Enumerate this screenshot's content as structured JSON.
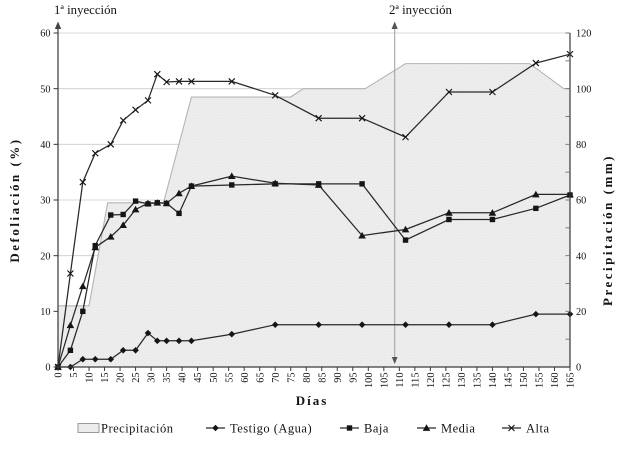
{
  "chart_data": {
    "type": "line",
    "title": "",
    "xlabel": "Días",
    "ylabel_left": "Defoliación (%)",
    "ylabel_right": "Precipitación (mm)",
    "x_range": [
      0,
      165
    ],
    "y_left_range": [
      0,
      60
    ],
    "y_right_range": [
      0,
      120
    ],
    "x_ticks": [
      0,
      5,
      10,
      15,
      20,
      25,
      30,
      35,
      40,
      45,
      50,
      55,
      60,
      65,
      70,
      75,
      80,
      85,
      90,
      95,
      100,
      105,
      110,
      115,
      120,
      125,
      130,
      135,
      140,
      145,
      150,
      155,
      160,
      165
    ],
    "y_ticks_left": [
      0,
      10,
      20,
      30,
      40,
      50,
      60
    ],
    "y_ticks_right": [
      0,
      20,
      40,
      60,
      80,
      100,
      120
    ],
    "grid": "horizontal",
    "legend_position": "bottom",
    "days": [
      0,
      4,
      8,
      12,
      17,
      21,
      25,
      29,
      32,
      35,
      39,
      43,
      56,
      70,
      84,
      98,
      112,
      126,
      140,
      154,
      165
    ],
    "series": [
      {
        "name": "Testigo (Agua)",
        "axis": "left",
        "marker": "diamond",
        "color": "#282828",
        "values": [
          0,
          0,
          1.4,
          1.4,
          1.4,
          3,
          3,
          6.1,
          4.7,
          4.7,
          4.7,
          4.7,
          5.9,
          7.6,
          7.6,
          7.6,
          7.6,
          7.6,
          7.6,
          9.5,
          9.5
        ]
      },
      {
        "name": "Baja",
        "axis": "left",
        "marker": "square",
        "color": "#282828",
        "values": [
          0,
          3,
          10,
          21.8,
          27.3,
          27.4,
          29.8,
          29.3,
          29.5,
          29.4,
          27.6,
          32.5,
          32.7,
          32.9,
          32.9,
          32.9,
          22.8,
          26.5,
          26.5,
          28.5,
          30.9
        ]
      },
      {
        "name": "Media",
        "axis": "left",
        "marker": "triangle",
        "color": "#282828",
        "values": [
          0,
          7.5,
          14.5,
          21.5,
          23.4,
          25.5,
          28.3,
          29.4,
          29.5,
          29.4,
          31.2,
          32.5,
          34.3,
          33,
          32.7,
          23.6,
          24.7,
          27.7,
          27.7,
          31,
          31
        ]
      },
      {
        "name": "Alta",
        "axis": "left",
        "marker": "x",
        "color": "#282828",
        "values": [
          0,
          16.8,
          33.2,
          38.4,
          40,
          44.3,
          46.2,
          47.9,
          52.6,
          51.2,
          51.3,
          51.3,
          51.3,
          48.8,
          44.7,
          44.7,
          41.3,
          49.4,
          49.4,
          54.6,
          56.2
        ]
      }
    ],
    "precipitation_area": {
      "name": "Precipitación",
      "axis": "right",
      "unit": "mm",
      "fill": "#ededed",
      "border": "#b4b4b4",
      "points": [
        [
          0,
          22
        ],
        [
          10,
          22
        ],
        [
          16,
          59
        ],
        [
          34,
          59
        ],
        [
          43,
          97
        ],
        [
          75,
          97
        ],
        [
          79,
          100
        ],
        [
          99,
          100
        ],
        [
          112,
          109
        ],
        [
          152,
          109
        ],
        [
          163,
          100
        ],
        [
          165,
          100
        ]
      ]
    },
    "annotations": [
      {
        "label": "1ª inyección",
        "day": 0,
        "arrow": "up"
      },
      {
        "label": "2ª inyección",
        "day": 108.5,
        "arrow": "up-down"
      }
    ],
    "legend": [
      {
        "label": "Precipitación",
        "swatch": "area"
      },
      {
        "label": "Testigo (Agua)",
        "swatch": "diamond"
      },
      {
        "label": "Baja",
        "swatch": "square"
      },
      {
        "label": "Media",
        "swatch": "triangle"
      },
      {
        "label": "Alta",
        "swatch": "x"
      }
    ],
    "colors": {
      "line": "#282828",
      "grid": "#cccccc",
      "axis": "#3a3a3a",
      "injection_line": "#a6a6a6"
    }
  }
}
